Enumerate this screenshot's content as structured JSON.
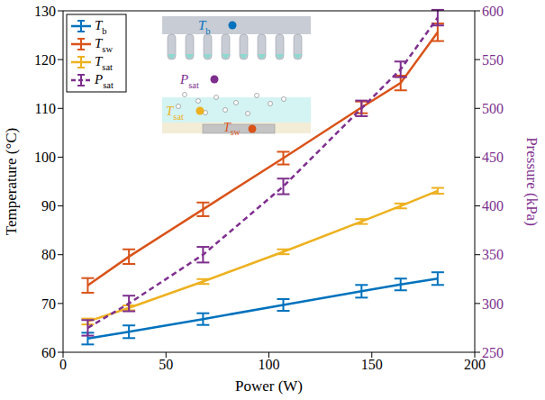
{
  "chart_data": {
    "type": "line",
    "x_label": "Power (W)",
    "y_label": "Temperature (°C)",
    "y2_label": "Pressure (kPa)",
    "x": [
      12,
      32,
      68,
      107,
      145,
      164,
      182
    ],
    "xlim": [
      0,
      200
    ],
    "xticks": [
      0,
      50,
      100,
      150,
      200
    ],
    "ylim": [
      60,
      130
    ],
    "yticks": [
      60,
      70,
      80,
      90,
      100,
      110,
      120,
      130
    ],
    "y2lim": [
      250,
      600
    ],
    "y2ticks": [
      250,
      300,
      350,
      400,
      450,
      500,
      550,
      600
    ],
    "grid": false,
    "legend": "upper left",
    "series": [
      {
        "name": "Tb",
        "color": "#0072bd",
        "values": [
          62.8,
          64.2,
          66.8,
          69.7,
          72.5,
          73.9,
          75.1
        ],
        "errors": [
          1.2,
          1.3,
          1.2,
          1.2,
          1.3,
          1.2,
          1.3
        ],
        "line_style": "solid"
      },
      {
        "name": "Tsw",
        "color": "#d95319",
        "values": [
          73.7,
          79.6,
          89.3,
          99.8,
          110.2,
          115.2,
          125.6
        ],
        "errors": [
          1.5,
          1.5,
          1.4,
          1.3,
          1.2,
          1.5,
          1.8
        ],
        "line_style": "solid"
      },
      {
        "name": "Tsat",
        "color": "#edb120",
        "values": [
          66.3,
          69.1,
          74.5,
          80.6,
          86.8,
          90.0,
          93.1
        ],
        "errors": [
          0.6,
          0.5,
          0.5,
          0.5,
          0.5,
          0.5,
          0.6
        ],
        "line_style": "solid"
      },
      {
        "name": "Psat",
        "color": "#7e2f8e",
        "values": [
          275,
          300,
          350,
          420,
          500,
          540,
          593
        ],
        "errors": [
          8,
          8,
          8,
          8,
          8,
          8,
          8
        ],
        "line_style": "dashed",
        "axis": "y2"
      }
    ]
  }
}
